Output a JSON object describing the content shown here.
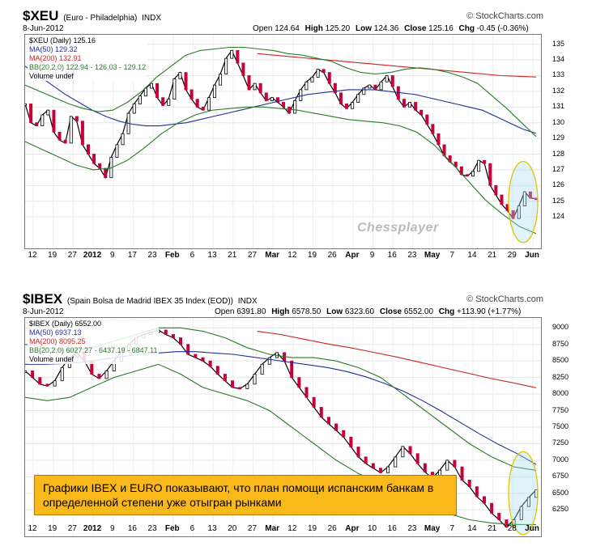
{
  "charts": [
    {
      "symbol": "$XEU",
      "description": "(Euro - Philadelphia)",
      "exchange": "INDX",
      "watermark": "© StockCharts.com",
      "date": "8-Jun-2012",
      "quote": {
        "open_label": "Open",
        "open": "124.64",
        "high_label": "High",
        "high": "125.20",
        "low_label": "Low",
        "low": "124.36",
        "close_label": "Close",
        "close": "125.16",
        "chg_label": "Chg",
        "chg": "-0.45 (-0.36%)"
      },
      "legend": [
        "$XEU (Daily) 125.16",
        "MA(50) 129.32",
        "MA(200) 132.91",
        "BB(20,2.0) 122.94 - 126.03 - 129.12",
        "Volume undef"
      ],
      "overlay_text": "Chessplayer"
    },
    {
      "symbol": "$IBEX",
      "description": "(Spain Bolsa de Madrid IBEX 35 Index (EOD))",
      "exchange": "INDX",
      "watermark": "© StockCharts.com",
      "date": "8-Jun-2012",
      "quote": {
        "open_label": "Open",
        "open": "6391.80",
        "high_label": "High",
        "high": "6578.50",
        "low_label": "Low",
        "low": "6323.60",
        "close_label": "Close",
        "close": "6552.00",
        "chg_label": "Chg",
        "chg": "+113.90 (+1.77%)"
      },
      "legend": [
        "$IBEX (Daily) 6552.00",
        "MA(50) 6937.13",
        "MA(200) 8095.25",
        "BB(20,2.0) 6027.27 - 6437.19 - 6847.11",
        "Volume undef"
      ]
    }
  ],
  "caption": "Графики IBEX и EURO показывают, что план помощи испанским банкам в определенной степени уже отыгран рынками",
  "chart_data": [
    {
      "type": "line",
      "title": "$XEU (Euro - Philadelphia) INDX",
      "ylim": [
        122,
        135.6
      ],
      "y_ticks": [
        124,
        125,
        126,
        127,
        128,
        129,
        130,
        131,
        132,
        133,
        134,
        135
      ],
      "x_ticks": [
        "12",
        "19",
        "27",
        "2012",
        "9",
        "17",
        "23",
        "Feb",
        "6",
        "13",
        "21",
        "27",
        "Mar",
        "12",
        "19",
        "26",
        "Apr",
        "9",
        "16",
        "23",
        "May",
        "7",
        "14",
        "21",
        "29",
        "Jun"
      ],
      "series": [
        {
          "name": "$XEU (Daily)",
          "values": [
            131.2,
            130.0,
            129.8,
            130.5,
            130.8,
            129.4,
            128.9,
            128.7,
            130.4,
            130.1,
            128.6,
            128.0,
            127.4,
            127.1,
            126.5,
            127.8,
            128.6,
            129.3,
            130.6,
            131.2,
            131.7,
            132.2,
            132.5,
            131.6,
            131.1,
            131.5,
            132.8,
            133.2,
            132.1,
            131.5,
            131.0,
            130.8,
            131.6,
            132.4,
            133.1,
            134.1,
            134.6,
            133.8,
            133.0,
            132.1,
            132.5,
            131.9,
            131.4,
            131.6,
            131.3,
            131.0,
            130.6,
            131.4,
            132.1,
            132.6,
            132.9,
            133.4,
            133.2,
            132.5,
            131.9,
            131.2,
            130.9,
            131.3,
            131.8,
            132.2,
            132.4,
            132.1,
            132.6,
            133.0,
            132.3,
            131.5,
            131.0,
            131.3,
            130.8,
            130.5,
            129.9,
            129.3,
            128.6,
            127.9,
            127.5,
            127.2,
            126.7,
            126.6,
            126.9,
            127.6,
            127.4,
            126.0,
            125.4,
            124.8,
            124.4,
            123.9,
            124.7,
            125.6,
            125.2,
            125.16
          ]
        },
        {
          "name": "MA(50)",
          "values": [
            133.6,
            133.0,
            132.4,
            131.8,
            131.3,
            130.8,
            130.4,
            130.1,
            129.9,
            129.8,
            129.8,
            129.9,
            130.0,
            130.2,
            130.4,
            130.6,
            130.8,
            131.0,
            131.2,
            131.4,
            131.6,
            131.8,
            131.9,
            132.0,
            132.1,
            132.1,
            132.1,
            132.0,
            131.9,
            131.8,
            131.6,
            131.4,
            131.2,
            131.0,
            130.8,
            130.4,
            130.0,
            129.6,
            129.32
          ]
        },
        {
          "name": "MA(200)",
          "values": [
            134.4,
            134.2,
            134.0,
            133.8,
            133.6,
            133.4,
            133.2,
            133.0,
            132.91
          ]
        },
        {
          "name": "BB upper",
          "values": [
            132.4,
            132.0,
            131.6,
            131.2,
            130.9,
            130.7,
            130.8,
            131.3,
            132.0,
            132.9,
            133.6,
            134.3,
            134.6,
            134.7,
            134.8,
            134.8,
            134.7,
            134.6,
            134.4,
            134.3,
            134.1,
            133.9,
            133.5,
            133.2,
            133.1,
            133.2,
            133.4,
            133.5,
            133.4,
            133.2,
            132.9,
            132.5,
            131.7,
            130.9,
            130.0,
            129.12
          ]
        },
        {
          "name": "BB lower",
          "values": [
            128.8,
            128.3,
            127.8,
            127.3,
            127.0,
            127.1,
            127.6,
            128.4,
            129.3,
            130.0,
            130.5,
            130.8,
            130.9,
            131.0,
            131.0,
            130.9,
            130.8,
            130.6,
            130.4,
            130.2,
            130.1,
            130.0,
            129.8,
            129.4,
            128.6,
            127.5,
            126.3,
            125.1,
            124.2,
            123.4,
            122.94
          ]
        }
      ]
    },
    {
      "type": "line",
      "title": "$IBEX (Spain Bolsa de Madrid IBEX 35 Index (EOD)) INDX",
      "ylim": [
        5850,
        9150
      ],
      "y_ticks": [
        6250,
        6500,
        6750,
        7000,
        7250,
        7500,
        7750,
        8000,
        8250,
        8500,
        8750,
        9000
      ],
      "x_ticks": [
        "12",
        "19",
        "27",
        "2012",
        "9",
        "16",
        "23",
        "Feb",
        "6",
        "13",
        "20",
        "27",
        "Mar",
        "12",
        "19",
        "26",
        "Apr",
        "10",
        "16",
        "23",
        "May",
        "7",
        "14",
        "21",
        "28",
        "Jun"
      ],
      "series": [
        {
          "name": "$IBEX (Daily)",
          "values": [
            8350,
            8250,
            8150,
            8121,
            8200,
            8400,
            8550,
            8620,
            8500,
            8300,
            8234,
            8350,
            8500,
            8650,
            8750,
            8850,
            8900,
            8930,
            8967,
            8900,
            8850,
            8750,
            8600,
            8550,
            8500,
            8420,
            8300,
            8200,
            8100,
            8082,
            8150,
            8300,
            8450,
            8550,
            8626,
            8500,
            8250,
            8100,
            7950,
            7800,
            7650,
            7550,
            7450,
            7350,
            7200,
            7050,
            6950,
            6880,
            6811,
            6900,
            7050,
            7208,
            7100,
            6950,
            6820,
            6733,
            6850,
            7000,
            6900,
            6700,
            6600,
            6450,
            6350,
            6200,
            6100,
            5988,
            6100,
            6300,
            6438,
            6552
          ]
        },
        {
          "name": "MA(50)",
          "values": [
            8450,
            8450,
            8460,
            8480,
            8520,
            8560,
            8600,
            8620,
            8640,
            8640,
            8620,
            8600,
            8560,
            8520,
            8480,
            8440,
            8400,
            8340,
            8260,
            8160,
            8040,
            7900,
            7740,
            7570,
            7400,
            7240,
            7100,
            6937
          ]
        },
        {
          "name": "MA(200)",
          "values": [
            8950,
            8900,
            8830,
            8760,
            8700,
            8630,
            8560,
            8480,
            8400,
            8320,
            8240,
            8170,
            8095
          ]
        },
        {
          "name": "BB upper",
          "values": [
            8750,
            8700,
            8650,
            8700,
            8800,
            8900,
            9000,
            9000,
            8950,
            8850,
            8700,
            8600,
            8550,
            8550,
            8500,
            8400,
            8250,
            8000,
            7750,
            7500,
            7250,
            7050,
            6900,
            6847
          ]
        },
        {
          "name": "BB lower",
          "values": [
            7950,
            7900,
            7950,
            8100,
            8250,
            8350,
            8450,
            8300,
            8100,
            8000,
            7900,
            7750,
            7500,
            7250,
            7000,
            6800,
            6650,
            6500,
            6350,
            6200,
            6100,
            6050,
            6030,
            6027
          ]
        }
      ]
    }
  ]
}
